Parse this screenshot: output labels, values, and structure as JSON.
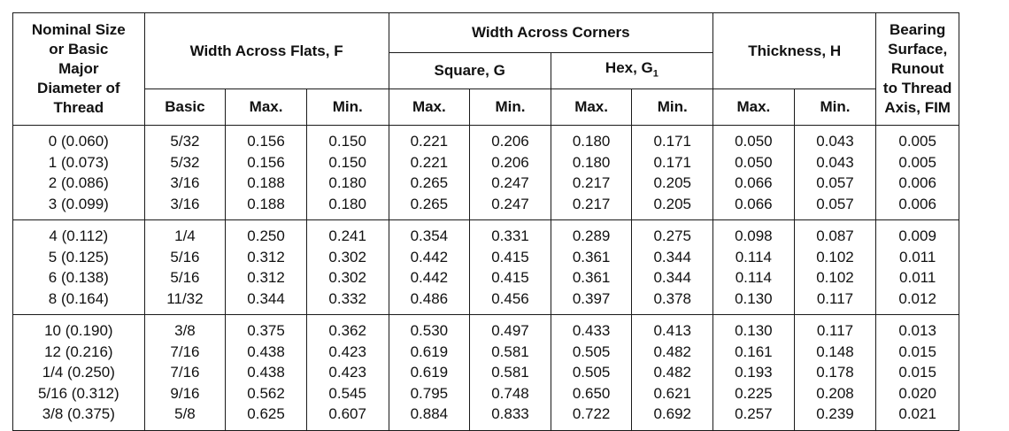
{
  "headers": {
    "nominal": "Nominal Size or Basic Major Diameter of Thread",
    "nominal_lines": [
      "Nominal Size",
      "or Basic",
      "Major",
      "Diameter of",
      "Thread"
    ],
    "width_flats": "Width Across Flats, F",
    "width_corners": "Width Across Corners",
    "square": "Square, G",
    "hex": "Hex, G",
    "hex_sub": "1",
    "thickness": "Thickness, H",
    "bearing_lines": [
      "Bearing",
      "Surface,",
      "Runout",
      "to Thread",
      "Axis, FIM"
    ],
    "basic": "Basic",
    "max": "Max.",
    "min": "Min."
  },
  "groups": [
    {
      "nominal": [
        "0 (0.060)",
        "1 (0.073)",
        "2 (0.086)",
        "3 (0.099)"
      ],
      "basic": [
        "5/32",
        "5/32",
        "3/16",
        "3/16"
      ],
      "f_max": [
        "0.156",
        "0.156",
        "0.188",
        "0.188"
      ],
      "f_min": [
        "0.150",
        "0.150",
        "0.180",
        "0.180"
      ],
      "g_max": [
        "0.221",
        "0.221",
        "0.265",
        "0.265"
      ],
      "g_min": [
        "0.206",
        "0.206",
        "0.247",
        "0.247"
      ],
      "g1_max": [
        "0.180",
        "0.180",
        "0.217",
        "0.217"
      ],
      "g1_min": [
        "0.171",
        "0.171",
        "0.205",
        "0.205"
      ],
      "h_max": [
        "0.050",
        "0.050",
        "0.066",
        "0.066"
      ],
      "h_min": [
        "0.043",
        "0.043",
        "0.057",
        "0.057"
      ],
      "fim": [
        "0.005",
        "0.005",
        "0.006",
        "0.006"
      ]
    },
    {
      "nominal": [
        "4 (0.112)",
        "5 (0.125)",
        "6 (0.138)",
        "8 (0.164)"
      ],
      "basic": [
        "1/4",
        "5/16",
        "5/16",
        "11/32"
      ],
      "f_max": [
        "0.250",
        "0.312",
        "0.312",
        "0.344"
      ],
      "f_min": [
        "0.241",
        "0.302",
        "0.302",
        "0.332"
      ],
      "g_max": [
        "0.354",
        "0.442",
        "0.442",
        "0.486"
      ],
      "g_min": [
        "0.331",
        "0.415",
        "0.415",
        "0.456"
      ],
      "g1_max": [
        "0.289",
        "0.361",
        "0.361",
        "0.397"
      ],
      "g1_min": [
        "0.275",
        "0.344",
        "0.344",
        "0.378"
      ],
      "h_max": [
        "0.098",
        "0.114",
        "0.114",
        "0.130"
      ],
      "h_min": [
        "0.087",
        "0.102",
        "0.102",
        "0.117"
      ],
      "fim": [
        "0.009",
        "0.011",
        "0.011",
        "0.012"
      ]
    },
    {
      "nominal": [
        "10 (0.190)",
        "12 (0.216)",
        "1/4 (0.250)",
        "5/16 (0.312)",
        "3/8 (0.375)"
      ],
      "basic": [
        "3/8",
        "7/16",
        "7/16",
        "9/16",
        "5/8"
      ],
      "f_max": [
        "0.375",
        "0.438",
        "0.438",
        "0.562",
        "0.625"
      ],
      "f_min": [
        "0.362",
        "0.423",
        "0.423",
        "0.545",
        "0.607"
      ],
      "g_max": [
        "0.530",
        "0.619",
        "0.619",
        "0.795",
        "0.884"
      ],
      "g_min": [
        "0.497",
        "0.581",
        "0.581",
        "0.748",
        "0.833"
      ],
      "g1_max": [
        "0.433",
        "0.505",
        "0.505",
        "0.650",
        "0.722"
      ],
      "g1_min": [
        "0.413",
        "0.482",
        "0.482",
        "0.621",
        "0.692"
      ],
      "h_max": [
        "0.130",
        "0.161",
        "0.193",
        "0.225",
        "0.257"
      ],
      "h_min": [
        "0.117",
        "0.148",
        "0.178",
        "0.208",
        "0.239"
      ],
      "fim": [
        "0.013",
        "0.015",
        "0.015",
        "0.020",
        "0.021"
      ]
    }
  ]
}
